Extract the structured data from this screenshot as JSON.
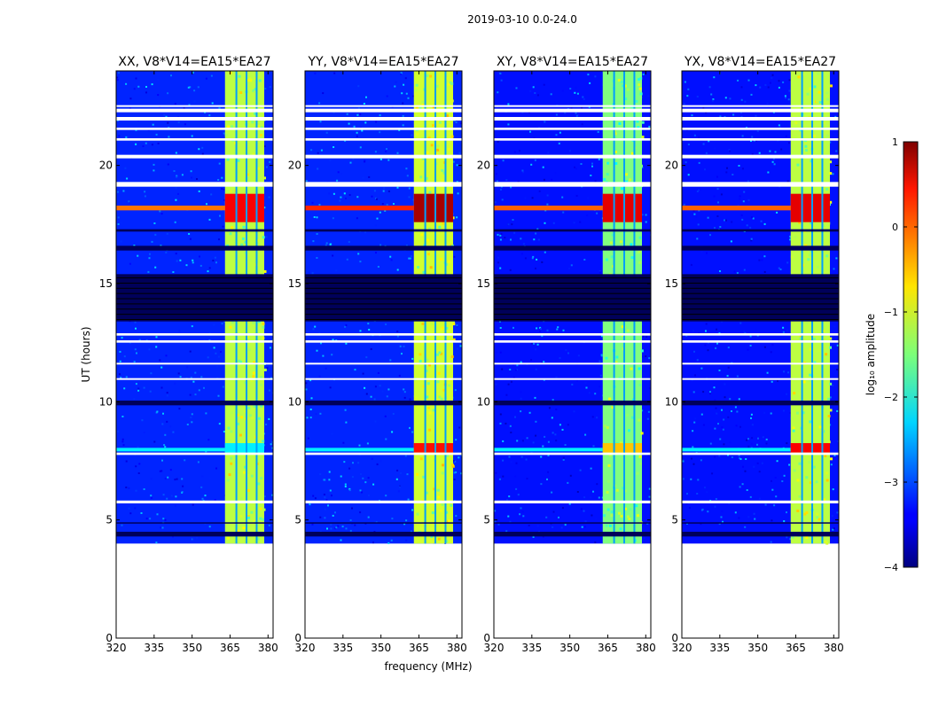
{
  "chart_data": {
    "type": "heatmap",
    "suptitle": "2019-03-10 0.0-24.0",
    "shared_xlabel": "frequency (MHz)",
    "ylabel": "UT (hours)",
    "xlim": [
      320,
      382
    ],
    "ylim": [
      0,
      24
    ],
    "xticks": [
      320,
      335,
      350,
      365,
      380
    ],
    "yticks": [
      0,
      5,
      10,
      15,
      20
    ],
    "colorscale": "jet",
    "colorbar": {
      "label": "log₁₀ amplitude",
      "range": [
        -4,
        1
      ],
      "ticks": [
        1,
        0,
        -1,
        -2,
        -3,
        -4
      ],
      "tick_labels": [
        "1",
        "0",
        "−1",
        "−2",
        "−3",
        "−4"
      ]
    },
    "data_start_ut": 4.0,
    "band": {
      "freq_range": [
        363,
        378.5
      ],
      "channel_gaps": [
        367.5,
        371.5,
        375.5
      ]
    },
    "panels": [
      {
        "title": "XX, V8*V14=EA15*EA27",
        "background": -3.2,
        "band_level": -1.2,
        "flare_level": 0.4,
        "flare_ut": [
          17.6,
          18.8
        ],
        "event_8ut": -2.2
      },
      {
        "title": "YY, V8*V14=EA15*EA27",
        "background": -3.2,
        "band_level": -1.1,
        "flare_level": 0.8,
        "flare_ut": [
          17.6,
          18.8
        ],
        "event_8ut": 0.3
      },
      {
        "title": "XY, V8*V14=EA15*EA27",
        "background": -3.3,
        "band_level": -1.5,
        "flare_level": 0.5,
        "flare_ut": [
          17.6,
          18.8
        ],
        "event_8ut": -0.6
      },
      {
        "title": "YX, V8*V14=EA15*EA27",
        "background": -3.3,
        "band_level": -1.2,
        "flare_level": 0.5,
        "flare_ut": [
          17.6,
          18.8
        ],
        "event_8ut": 0.4
      }
    ],
    "blank_rows_ut": [
      [
        19.1,
        19.3
      ],
      [
        20.3,
        20.45
      ],
      [
        21.05,
        21.15
      ],
      [
        21.5,
        21.6
      ],
      [
        21.9,
        22.05
      ],
      [
        22.25,
        22.4
      ],
      [
        22.5,
        22.55
      ],
      [
        11.6,
        11.65
      ],
      [
        10.95,
        11.0
      ],
      [
        12.8,
        12.9
      ],
      [
        12.5,
        12.6
      ],
      [
        7.75,
        7.85
      ],
      [
        5.7,
        5.82
      ]
    ],
    "dark_rows_ut": [
      [
        4.3,
        4.5
      ],
      [
        4.85,
        4.9
      ],
      [
        9.85,
        10.05
      ],
      [
        13.4,
        15.4
      ],
      [
        16.4,
        16.6
      ],
      [
        17.2,
        17.3
      ]
    ]
  }
}
